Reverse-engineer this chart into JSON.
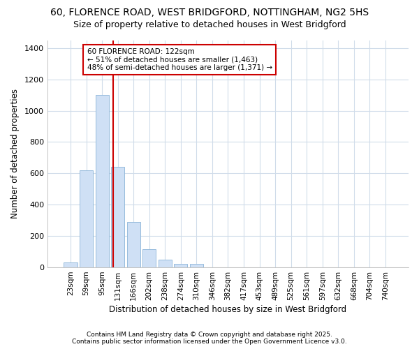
{
  "title_line1": "60, FLORENCE ROAD, WEST BRIDGFORD, NOTTINGHAM, NG2 5HS",
  "title_line2": "Size of property relative to detached houses in West Bridgford",
  "xlabel": "Distribution of detached houses by size in West Bridgford",
  "ylabel": "Number of detached properties",
  "categories": [
    "23sqm",
    "59sqm",
    "95sqm",
    "131sqm",
    "166sqm",
    "202sqm",
    "238sqm",
    "274sqm",
    "310sqm",
    "346sqm",
    "382sqm",
    "417sqm",
    "453sqm",
    "489sqm",
    "525sqm",
    "561sqm",
    "597sqm",
    "632sqm",
    "668sqm",
    "704sqm",
    "740sqm"
  ],
  "values": [
    30,
    620,
    1100,
    640,
    290,
    115,
    50,
    22,
    22,
    0,
    0,
    0,
    0,
    0,
    0,
    0,
    0,
    0,
    0,
    0,
    0
  ],
  "bar_color": "#cfe0f5",
  "bar_edge_color": "#8ab4d8",
  "bg_color": "#ffffff",
  "plot_bg_color": "#ffffff",
  "grid_color": "#d0dcea",
  "ref_line_color": "#cc0000",
  "ref_line_x": 2.72,
  "annotation_line1": "60 FLORENCE ROAD: 122sqm",
  "annotation_line2": "← 51% of detached houses are smaller (1,463)",
  "annotation_line3": "48% of semi-detached houses are larger (1,371) →",
  "ylim": [
    0,
    1450
  ],
  "yticks": [
    0,
    200,
    400,
    600,
    800,
    1000,
    1200,
    1400
  ],
  "footnote": "Contains HM Land Registry data © Crown copyright and database right 2025.\nContains public sector information licensed under the Open Government Licence v3.0."
}
